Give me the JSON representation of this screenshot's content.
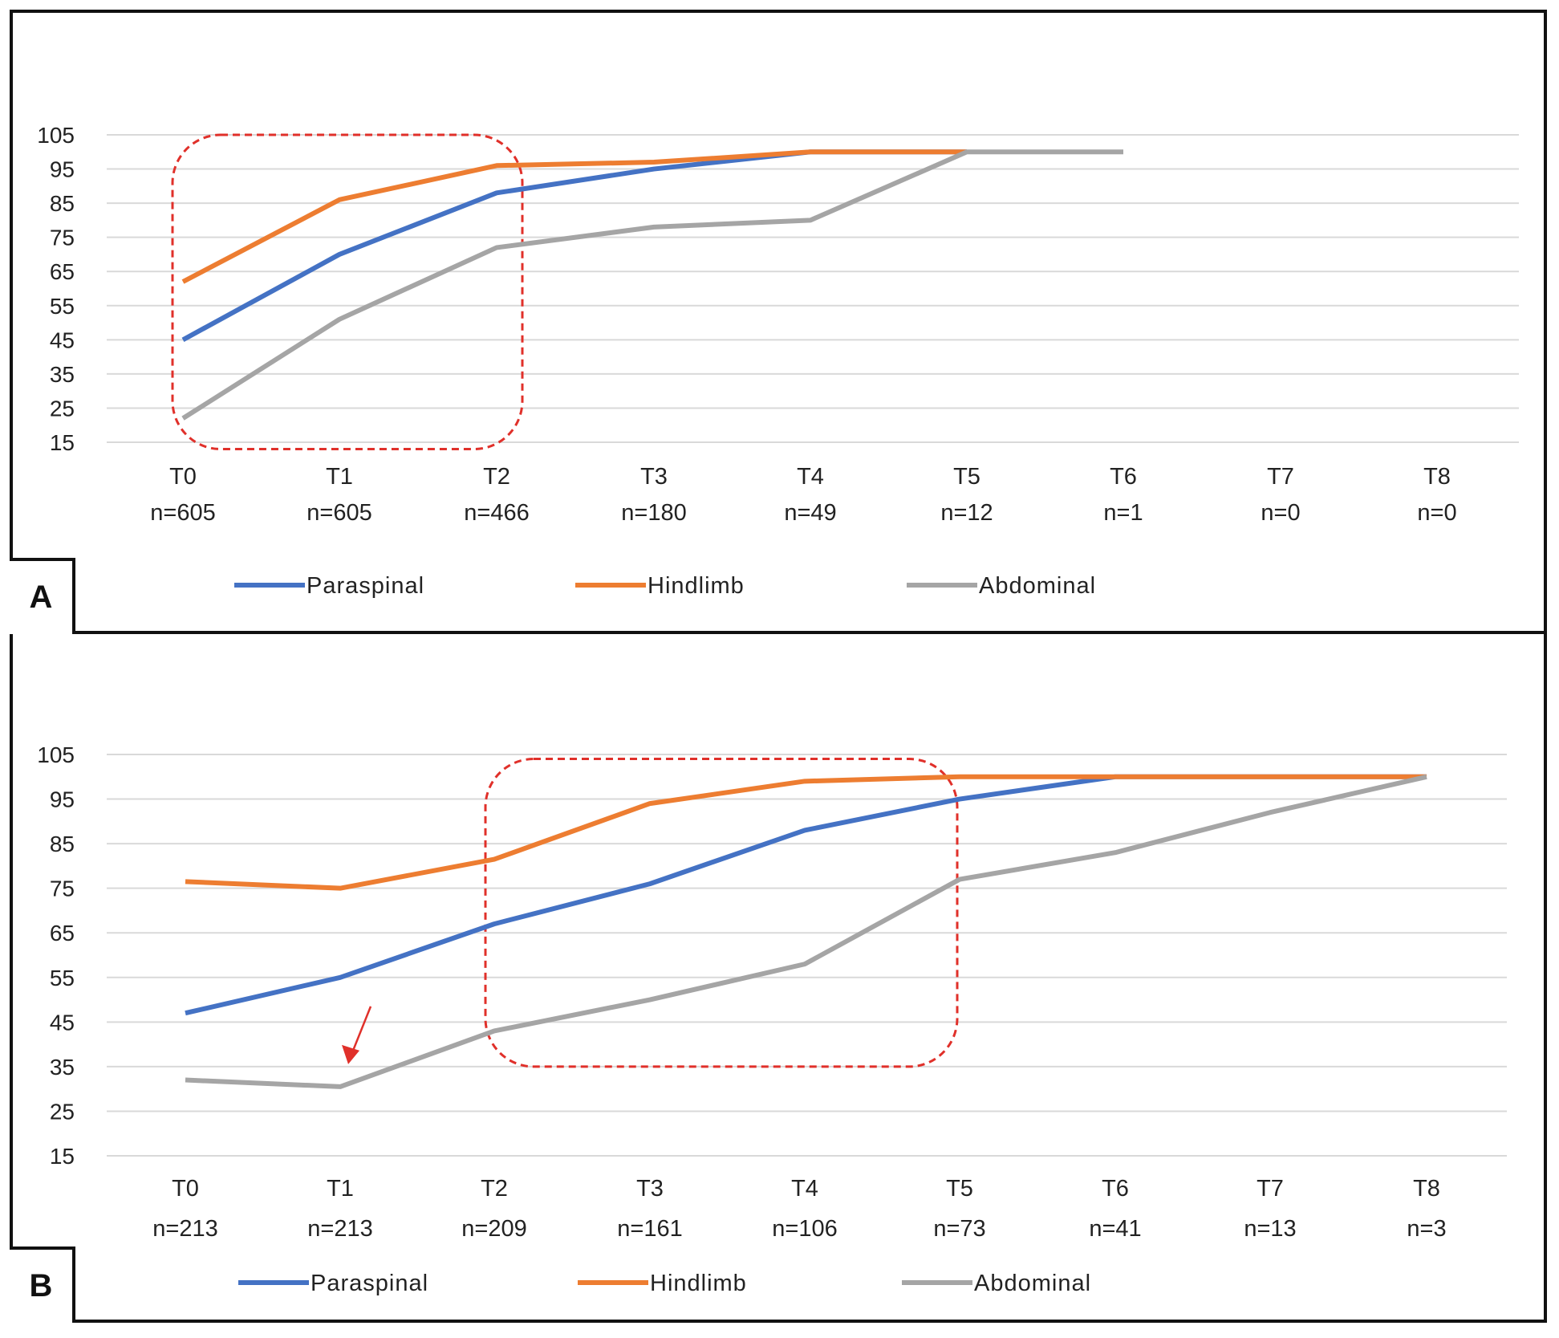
{
  "chart_data": [
    {
      "type": "line",
      "panel": "A",
      "title": "",
      "xlabel": "",
      "ylabel": "",
      "ylim": [
        15,
        105
      ],
      "y_ticks": [
        105,
        95,
        85,
        75,
        65,
        55,
        45,
        35,
        25,
        15
      ],
      "categories": [
        "T0",
        "T1",
        "T2",
        "T3",
        "T4",
        "T5",
        "T6",
        "T7",
        "T8"
      ],
      "sample_sizes": [
        "n=605",
        "n=605",
        "n=466",
        "n=180",
        "n=49",
        "n=12",
        "n=1",
        "n=0",
        "n=0"
      ],
      "series": [
        {
          "name": "Paraspinal",
          "color": "#4472C4",
          "values": [
            45,
            70,
            88,
            95,
            100,
            100,
            null,
            null,
            null
          ]
        },
        {
          "name": "Hindlimb",
          "color": "#ED7D31",
          "values": [
            62,
            86,
            96,
            97,
            100,
            100,
            null,
            null,
            null
          ]
        },
        {
          "name": "Abdominal",
          "color": "#A5A5A5",
          "values": [
            22,
            51,
            72,
            78,
            80,
            100,
            100,
            null,
            null
          ]
        }
      ],
      "annotations": [
        {
          "kind": "dashed-box",
          "from": "T0",
          "to": "T2",
          "ymin": 13,
          "ymax": 105
        }
      ]
    },
    {
      "type": "line",
      "panel": "B",
      "title": "",
      "xlabel": "",
      "ylabel": "",
      "ylim": [
        15,
        105
      ],
      "y_ticks": [
        105,
        95,
        85,
        75,
        65,
        55,
        45,
        35,
        25,
        15
      ],
      "categories": [
        "T0",
        "T1",
        "T2",
        "T3",
        "T4",
        "T5",
        "T6",
        "T7",
        "T8"
      ],
      "sample_sizes": [
        "n=213",
        "n=213",
        "n=209",
        "n=161",
        "n=106",
        "n=73",
        "n=41",
        "n=13",
        "n=3"
      ],
      "series": [
        {
          "name": "Paraspinal",
          "color": "#4472C4",
          "values": [
            47,
            55,
            67,
            76,
            88,
            95,
            100,
            100,
            100
          ]
        },
        {
          "name": "Hindlimb ",
          "color": "#ED7D31",
          "values": [
            76.5,
            75,
            81.5,
            94,
            99,
            100,
            100,
            100,
            100
          ]
        },
        {
          "name": "Abdominal",
          "color": "#A5A5A5",
          "values": [
            32,
            30.5,
            43,
            50,
            58,
            77,
            83,
            92,
            100
          ]
        }
      ],
      "annotations": [
        {
          "kind": "dashed-box",
          "from": "T2",
          "to": "T5",
          "ymin": 35,
          "ymax": 104
        },
        {
          "kind": "arrow",
          "target": "T1",
          "series": "Abdominal"
        }
      ]
    }
  ],
  "panels": {
    "a_label": "A",
    "b_label": "B"
  },
  "colors": {
    "annotation": "#E0302A",
    "grid": "#D9D9D9",
    "text": "#222222"
  }
}
